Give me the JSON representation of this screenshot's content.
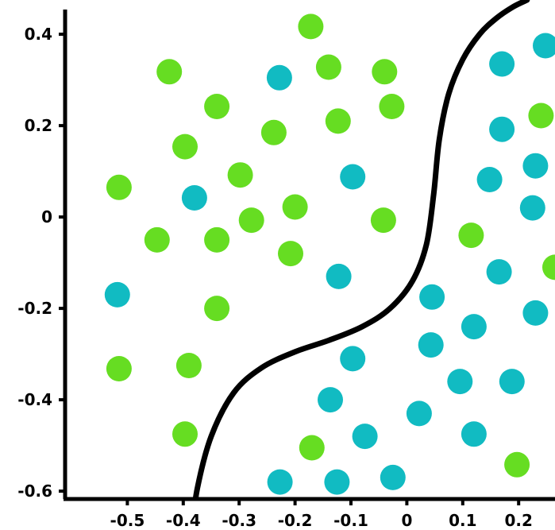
{
  "chart_data": {
    "type": "scatter",
    "title": "",
    "xlabel": "",
    "ylabel": "",
    "xlim": [
      -0.61,
      0.265
    ],
    "ylim": [
      -0.685,
      0.475
    ],
    "x_ticks": [
      -0.5,
      -0.4,
      -0.3,
      -0.2,
      -0.1,
      0,
      0.1,
      0.2
    ],
    "x_tick_labels": [
      "-0.5",
      "-0.4",
      "-0.3",
      "-0.2",
      "-0.1",
      "0",
      "0.1",
      "0.2"
    ],
    "y_ticks": [
      0.4,
      0.2,
      0,
      -0.2,
      -0.4,
      -0.6
    ],
    "y_tick_labels": [
      "0.4",
      "0.2",
      "0",
      "-0.2",
      "-0.4",
      "-0.6"
    ],
    "grid": false,
    "colors": {
      "green": "#66dd22",
      "teal": "#11bbc2",
      "boundary": "#000000",
      "axis": "#000000"
    },
    "series": [
      {
        "values": [
          [
            -0.172,
            0.417
          ],
          [
            -0.425,
            0.318
          ],
          [
            -0.14,
            0.328
          ],
          [
            -0.04,
            0.318
          ],
          [
            -0.34,
            0.242
          ],
          [
            -0.027,
            0.242
          ],
          [
            -0.123,
            0.21
          ],
          [
            -0.238,
            0.185
          ],
          [
            -0.397,
            0.154
          ],
          [
            -0.298,
            0.092
          ],
          [
            -0.515,
            0.065
          ],
          [
            -0.2,
            0.022
          ],
          [
            -0.278,
            -0.007
          ],
          [
            -0.042,
            -0.007
          ],
          [
            -0.447,
            -0.05
          ],
          [
            -0.34,
            -0.05
          ],
          [
            -0.208,
            -0.08
          ],
          [
            0.115,
            -0.04
          ],
          [
            0.265,
            -0.11
          ],
          [
            -0.34,
            -0.2
          ],
          [
            -0.515,
            -0.332
          ],
          [
            -0.39,
            -0.325
          ],
          [
            -0.397,
            -0.475
          ],
          [
            -0.17,
            -0.505
          ],
          [
            0.197,
            -0.542
          ],
          [
            0.24,
            0.222
          ]
        ]
      },
      {
        "values": [
          [
            0.248,
            0.375
          ],
          [
            0.17,
            0.335
          ],
          [
            -0.228,
            0.305
          ],
          [
            0.17,
            0.192
          ],
          [
            0.23,
            0.112
          ],
          [
            0.148,
            0.082
          ],
          [
            -0.097,
            0.088
          ],
          [
            -0.38,
            0.042
          ],
          [
            0.225,
            0.02
          ],
          [
            -0.122,
            -0.13
          ],
          [
            0.165,
            -0.12
          ],
          [
            -0.518,
            -0.17
          ],
          [
            0.045,
            -0.175
          ],
          [
            0.23,
            -0.21
          ],
          [
            0.12,
            -0.24
          ],
          [
            0.043,
            -0.28
          ],
          [
            -0.097,
            -0.31
          ],
          [
            0.095,
            -0.36
          ],
          [
            0.188,
            -0.36
          ],
          [
            -0.137,
            -0.4
          ],
          [
            0.022,
            -0.43
          ],
          [
            -0.075,
            -0.48
          ],
          [
            0.12,
            -0.475
          ],
          [
            -0.227,
            -0.58
          ],
          [
            -0.125,
            -0.58
          ],
          [
            -0.025,
            -0.57
          ]
        ]
      }
    ],
    "boundary_curve": [
      [
        -0.385,
        -0.69
      ],
      [
        -0.375,
        -0.595
      ],
      [
        -0.35,
        -0.48
      ],
      [
        -0.31,
        -0.385
      ],
      [
        -0.26,
        -0.33
      ],
      [
        -0.2,
        -0.295
      ],
      [
        -0.14,
        -0.27
      ],
      [
        -0.08,
        -0.24
      ],
      [
        -0.03,
        -0.2
      ],
      [
        0.01,
        -0.14
      ],
      [
        0.035,
        -0.06
      ],
      [
        0.048,
        0.05
      ],
      [
        0.058,
        0.17
      ],
      [
        0.075,
        0.27
      ],
      [
        0.1,
        0.345
      ],
      [
        0.13,
        0.4
      ],
      [
        0.16,
        0.435
      ],
      [
        0.19,
        0.46
      ],
      [
        0.215,
        0.475
      ]
    ]
  }
}
